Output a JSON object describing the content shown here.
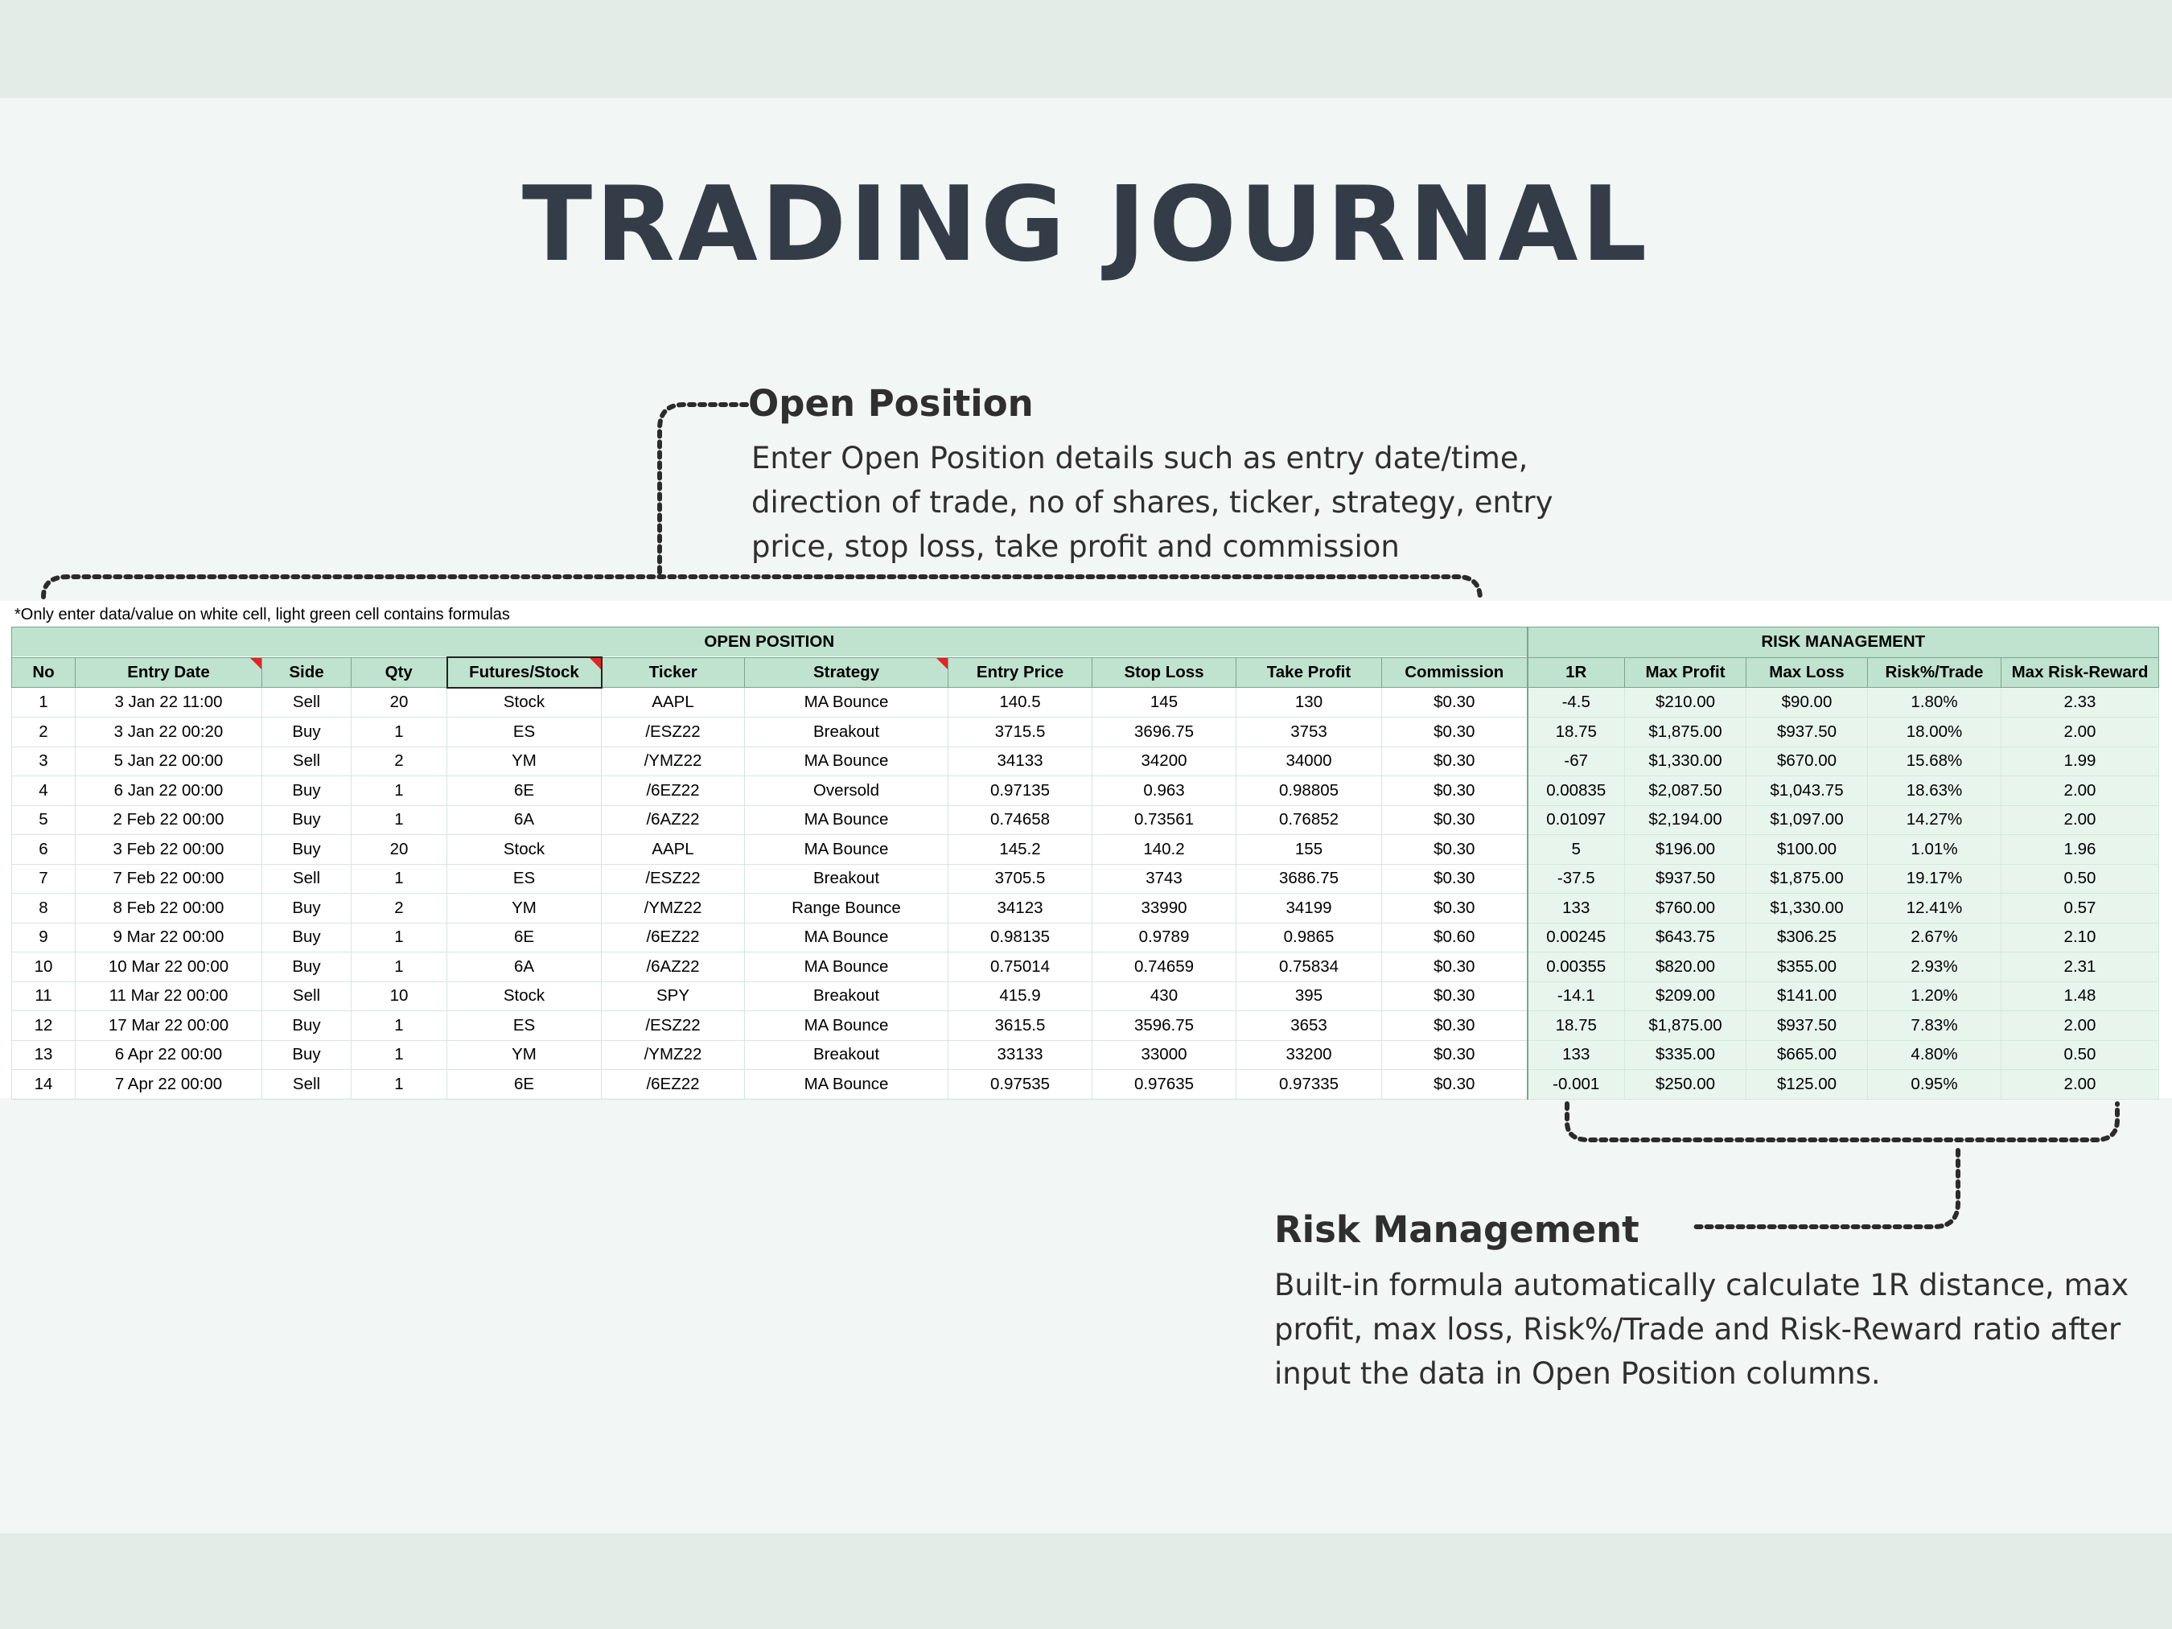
{
  "title": "TRADING JOURNAL",
  "open_position_callout": {
    "heading": "Open Position",
    "body": "Enter Open Position details such as entry date/time, direction of trade, no of shares, ticker, strategy, entry price, stop loss, take profit and commission"
  },
  "risk_callout": {
    "heading": "Risk Management",
    "body": "Built-in formula automatically calculate 1R distance, max profit, max loss,  Risk%/Trade and Risk-Reward ratio after input the data in Open Position columns."
  },
  "sheet": {
    "note": "*Only enter data/value on white cell, light green cell contains formulas",
    "group_open": "OPEN POSITION",
    "group_risk": "RISK MANAGEMENT",
    "headers": [
      "No",
      "Entry Date",
      "Side",
      "Qty",
      "Futures/Stock",
      "Ticker",
      "Strategy",
      "Entry Price",
      "Stop Loss",
      "Take Profit",
      "Commission",
      "1R",
      "Max Profit",
      "Max Loss",
      "Risk%/Trade",
      "Max Risk-Reward"
    ],
    "rows": [
      [
        "1",
        "3 Jan 22 11:00",
        "Sell",
        "20",
        "Stock",
        "AAPL",
        "MA Bounce",
        "140.5",
        "145",
        "130",
        "$0.30",
        "-4.5",
        "$210.00",
        "$90.00",
        "1.80%",
        "2.33"
      ],
      [
        "2",
        "3 Jan 22 00:20",
        "Buy",
        "1",
        "ES",
        "/ESZ22",
        "Breakout",
        "3715.5",
        "3696.75",
        "3753",
        "$0.30",
        "18.75",
        "$1,875.00",
        "$937.50",
        "18.00%",
        "2.00"
      ],
      [
        "3",
        "5 Jan 22 00:00",
        "Sell",
        "2",
        "YM",
        "/YMZ22",
        "MA Bounce",
        "34133",
        "34200",
        "34000",
        "$0.30",
        "-67",
        "$1,330.00",
        "$670.00",
        "15.68%",
        "1.99"
      ],
      [
        "4",
        "6 Jan 22 00:00",
        "Buy",
        "1",
        "6E",
        "/6EZ22",
        "Oversold",
        "0.97135",
        "0.963",
        "0.98805",
        "$0.30",
        "0.00835",
        "$2,087.50",
        "$1,043.75",
        "18.63%",
        "2.00"
      ],
      [
        "5",
        "2 Feb 22 00:00",
        "Buy",
        "1",
        "6A",
        "/6AZ22",
        "MA Bounce",
        "0.74658",
        "0.73561",
        "0.76852",
        "$0.30",
        "0.01097",
        "$2,194.00",
        "$1,097.00",
        "14.27%",
        "2.00"
      ],
      [
        "6",
        "3 Feb 22 00:00",
        "Buy",
        "20",
        "Stock",
        "AAPL",
        "MA Bounce",
        "145.2",
        "140.2",
        "155",
        "$0.30",
        "5",
        "$196.00",
        "$100.00",
        "1.01%",
        "1.96"
      ],
      [
        "7",
        "7 Feb 22 00:00",
        "Sell",
        "1",
        "ES",
        "/ESZ22",
        "Breakout",
        "3705.5",
        "3743",
        "3686.75",
        "$0.30",
        "-37.5",
        "$937.50",
        "$1,875.00",
        "19.17%",
        "0.50"
      ],
      [
        "8",
        "8 Feb 22 00:00",
        "Buy",
        "2",
        "YM",
        "/YMZ22",
        "Range Bounce",
        "34123",
        "33990",
        "34199",
        "$0.30",
        "133",
        "$760.00",
        "$1,330.00",
        "12.41%",
        "0.57"
      ],
      [
        "9",
        "9 Mar 22 00:00",
        "Buy",
        "1",
        "6E",
        "/6EZ22",
        "MA Bounce",
        "0.98135",
        "0.9789",
        "0.9865",
        "$0.60",
        "0.00245",
        "$643.75",
        "$306.25",
        "2.67%",
        "2.10"
      ],
      [
        "10",
        "10 Mar 22 00:00",
        "Buy",
        "1",
        "6A",
        "/6AZ22",
        "MA Bounce",
        "0.75014",
        "0.74659",
        "0.75834",
        "$0.30",
        "0.00355",
        "$820.00",
        "$355.00",
        "2.93%",
        "2.31"
      ],
      [
        "11",
        "11 Mar 22 00:00",
        "Sell",
        "10",
        "Stock",
        "SPY",
        "Breakout",
        "415.9",
        "430",
        "395",
        "$0.30",
        "-14.1",
        "$209.00",
        "$141.00",
        "1.20%",
        "1.48"
      ],
      [
        "12",
        "17 Mar 22 00:00",
        "Buy",
        "1",
        "ES",
        "/ESZ22",
        "MA Bounce",
        "3615.5",
        "3596.75",
        "3653",
        "$0.30",
        "18.75",
        "$1,875.00",
        "$937.50",
        "7.83%",
        "2.00"
      ],
      [
        "13",
        "6 Apr 22 00:00",
        "Buy",
        "1",
        "YM",
        "/YMZ22",
        "Breakout",
        "33133",
        "33000",
        "33200",
        "$0.30",
        "133",
        "$335.00",
        "$665.00",
        "4.80%",
        "0.50"
      ],
      [
        "14",
        "7 Apr 22 00:00",
        "Sell",
        "1",
        "6E",
        "/6EZ22",
        "MA Bounce",
        "0.97535",
        "0.97635",
        "0.97335",
        "$0.30",
        "-0.001",
        "$250.00",
        "$125.00",
        "0.95%",
        "2.00"
      ]
    ]
  },
  "colors": {
    "title": "#343d47",
    "header_fill": "#bfe3cf",
    "formula_fill": "#e8f5ed",
    "comment_flag": "#e52421",
    "background": "#f2f6f4",
    "band": "#e3ece6"
  }
}
